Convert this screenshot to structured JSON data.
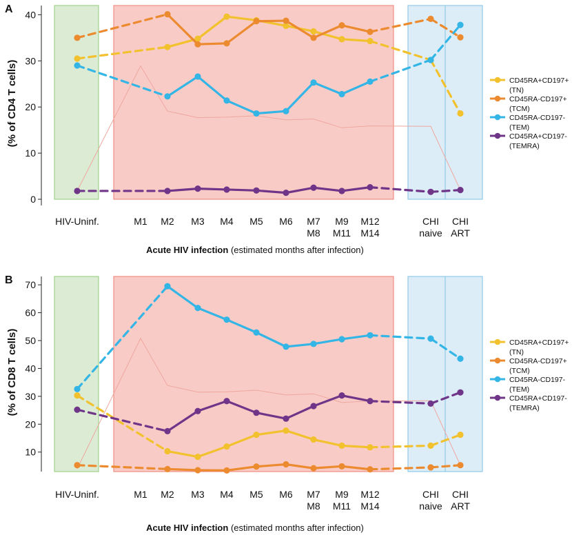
{
  "figure": {
    "x_title_bold": "Acute HIV infection",
    "x_title_rest": " (estimated months after infection)",
    "categories": [
      [
        "HIV-Uninf."
      ],
      [
        "M1"
      ],
      [
        "M2"
      ],
      [
        "M3"
      ],
      [
        "M4"
      ],
      [
        "M5"
      ],
      [
        "M6"
      ],
      [
        "M7",
        "M8"
      ],
      [
        "M9",
        "M11"
      ],
      [
        "M12",
        "M14"
      ],
      [
        "CHI",
        "naive"
      ],
      [
        "CHI",
        "ART"
      ]
    ]
  },
  "chart_data": [
    {
      "type": "line",
      "panel_letter": "A",
      "ylabel": "(% of CD4 T cells)",
      "ylim": [
        0,
        42
      ],
      "yticks": [
        0,
        10,
        20,
        30,
        40
      ],
      "region_colors": {
        "uninfected": "#dcebd3",
        "acute": "#f9cbc6",
        "chronic": "#dcedf8"
      },
      "series": [
        {
          "name": "CD45RA+CD197+",
          "sub": "(TN)",
          "sub_main": "T",
          "sub_sc": "N",
          "color": "#f2c12e",
          "values": [
            30.5,
            null,
            33.0,
            34.8,
            39.6,
            38.8,
            37.6,
            36.4,
            34.7,
            34.3,
            30.2,
            18.6
          ]
        },
        {
          "name": "CD45RA-CD197+",
          "sub": "(TCM)",
          "sub_main": "T",
          "sub_sc": "CM",
          "color": "#ec8a2f",
          "values": [
            35.0,
            null,
            40.1,
            33.6,
            33.8,
            38.6,
            38.7,
            35.0,
            37.7,
            36.3,
            39.1,
            35.1
          ]
        },
        {
          "name": "CD45RA-CD197-",
          "sub": "(TEM)",
          "sub_main": "T",
          "sub_sc": "EM",
          "color": "#33b5e6",
          "values": [
            29.0,
            null,
            22.3,
            26.6,
            21.4,
            18.6,
            19.1,
            25.3,
            22.8,
            25.5,
            30.2,
            37.8
          ]
        },
        {
          "name": "CD45RA+CD197-",
          "sub": "(TEMRA)",
          "sub_main": "T",
          "sub_sc": "EMRA",
          "color": "#6f3588",
          "values": [
            1.8,
            null,
            1.8,
            2.3,
            2.1,
            1.9,
            1.4,
            2.5,
            1.8,
            2.6,
            1.6,
            2.0
          ]
        }
      ],
      "n_trace": [
        1.8,
        28.9,
        19.1,
        17.7,
        17.8,
        18.1,
        17.2,
        17.4,
        15.5,
        15.9,
        15.8,
        2.0
      ]
    },
    {
      "type": "line",
      "panel_letter": "B",
      "ylabel": "(% of CD8 T cells)",
      "ylim": [
        3,
        73
      ],
      "yticks": [
        10,
        20,
        30,
        40,
        50,
        60,
        70
      ],
      "region_colors": {
        "uninfected": "#dcebd3",
        "acute": "#f9cbc6",
        "chronic": "#dcedf8"
      },
      "series": [
        {
          "name": "CD45RA+CD197+",
          "sub": "(TN)",
          "sub_main": "T",
          "sub_sc": "N",
          "color": "#f2c12e",
          "values": [
            30.3,
            null,
            10.3,
            8.3,
            12.0,
            16.2,
            17.7,
            14.5,
            12.3,
            11.7,
            12.3,
            16.2
          ]
        },
        {
          "name": "CD45RA-CD197+",
          "sub": "(TCM)",
          "sub_main": "T",
          "sub_sc": "CM",
          "color": "#ec8a2f",
          "values": [
            5.3,
            null,
            3.9,
            3.5,
            3.4,
            4.8,
            5.6,
            4.2,
            4.9,
            3.8,
            4.5,
            5.3
          ]
        },
        {
          "name": "CD45RA-CD197-",
          "sub": "(TEM)",
          "sub_main": "T",
          "sub_sc": "EM",
          "color": "#33b5e6",
          "values": [
            32.6,
            null,
            69.5,
            61.7,
            57.5,
            52.9,
            47.8,
            48.8,
            50.5,
            51.9,
            50.7,
            43.5
          ]
        },
        {
          "name": "CD45RA+CD197-",
          "sub": "(TEMRA)",
          "sub_main": "T",
          "sub_sc": "EMRA",
          "color": "#6f3588",
          "values": [
            25.2,
            null,
            17.5,
            24.7,
            28.3,
            24.1,
            22.0,
            26.5,
            30.3,
            28.3,
            27.4,
            31.4
          ]
        }
      ],
      "n_trace": [
        4.0,
        50.8,
        33.9,
        31.5,
        31.6,
        32.2,
        30.5,
        30.9,
        27.8,
        28.3,
        28.4,
        5.3
      ]
    }
  ]
}
